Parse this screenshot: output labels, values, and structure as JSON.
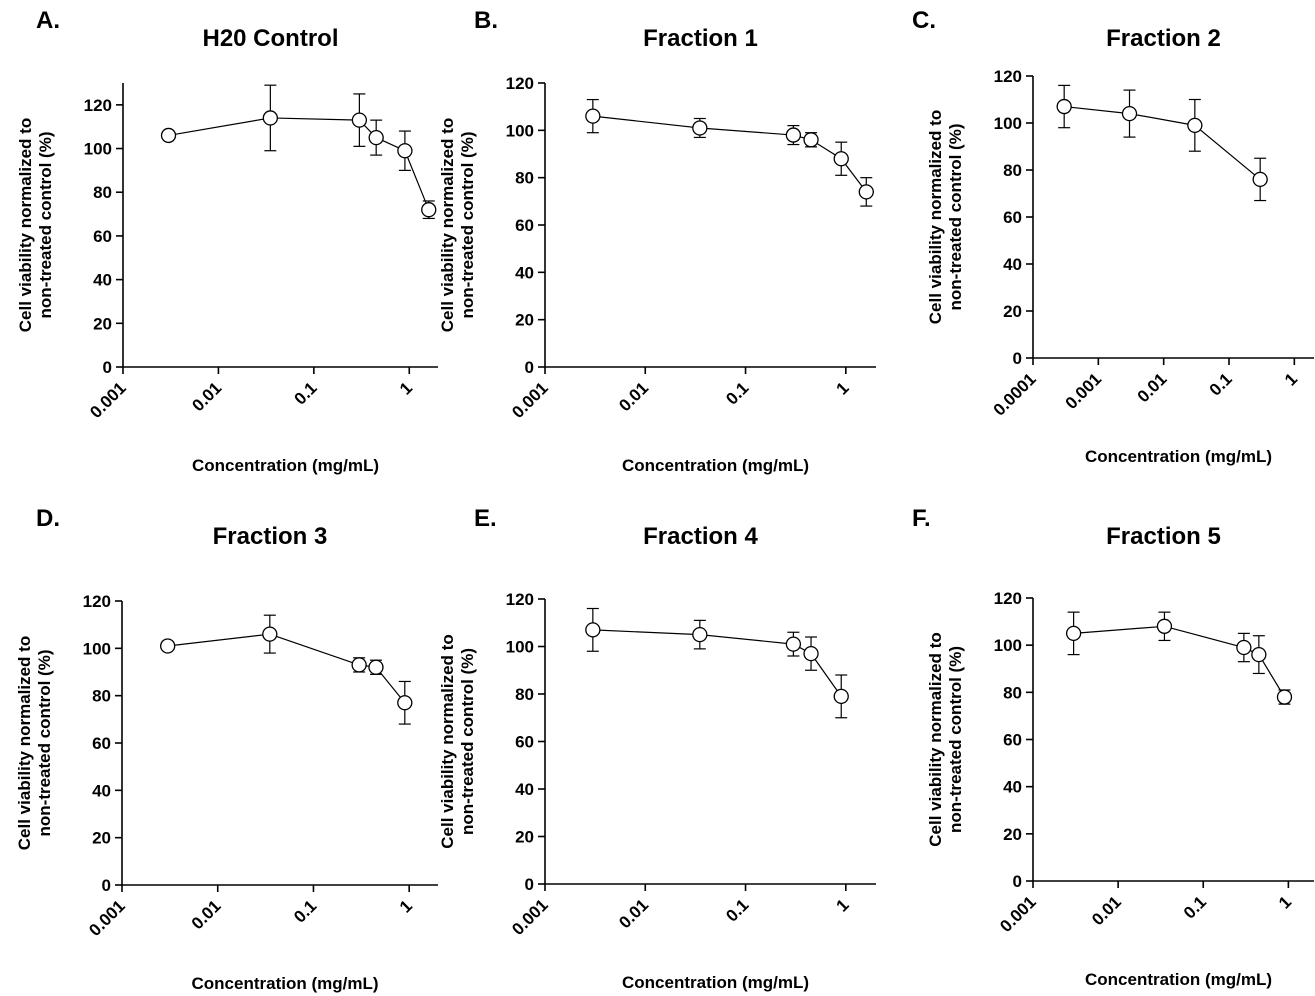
{
  "chart_data": [
    {
      "panel": "A.",
      "type": "scatter",
      "title": "H20 Control",
      "xlabel": "Concentration (mg/mL)",
      "ylabel": [
        "Cell viability normalized to",
        "non-treated control (%)"
      ],
      "x_scale": "log",
      "xlim": [
        0.001,
        2
      ],
      "ylim": [
        0,
        130
      ],
      "xticks": [
        0.001,
        0.01,
        0.1,
        1
      ],
      "xtick_labels": [
        "0.001",
        "0.01",
        "0.1",
        "1"
      ],
      "yticks": [
        0,
        20,
        40,
        60,
        80,
        100,
        120
      ],
      "ytick_labels": [
        "0",
        "20",
        "40",
        "60",
        "80",
        "100",
        "120"
      ],
      "series": [
        {
          "x": [
            0.003,
            0.035,
            0.3,
            0.45,
            0.9,
            1.6
          ],
          "y": [
            106,
            114,
            113,
            105,
            99,
            72
          ],
          "err": [
            0,
            15,
            12,
            8,
            9,
            4
          ]
        }
      ]
    },
    {
      "panel": "B.",
      "type": "scatter",
      "title": "Fraction 1",
      "xlabel": "Concentration (mg/mL)",
      "ylabel": [
        "Cell viability normalized to",
        "non-treated control (%)"
      ],
      "x_scale": "log",
      "xlim": [
        0.001,
        2
      ],
      "ylim": [
        0,
        120
      ],
      "xticks": [
        0.001,
        0.01,
        0.1,
        1
      ],
      "xtick_labels": [
        "0.001",
        "0.01",
        "0.1",
        "1"
      ],
      "yticks": [
        0,
        20,
        40,
        60,
        80,
        100,
        120
      ],
      "ytick_labels": [
        "0",
        "20",
        "40",
        "60",
        "80",
        "100",
        "120"
      ],
      "series": [
        {
          "x": [
            0.003,
            0.035,
            0.3,
            0.45,
            0.9,
            1.6
          ],
          "y": [
            106,
            101,
            98,
            96,
            88,
            74
          ],
          "err": [
            7,
            4,
            4,
            3,
            7,
            6
          ]
        }
      ]
    },
    {
      "panel": "C.",
      "type": "scatter",
      "title": "Fraction 2",
      "xlabel": "Concentration (mg/mL)",
      "ylabel": [
        "Cell viability normalized to",
        "non-treated control (%)"
      ],
      "x_scale": "log",
      "xlim": [
        0.0001,
        2
      ],
      "ylim": [
        0,
        120
      ],
      "xticks": [
        0.0001,
        0.001,
        0.01,
        0.1,
        1
      ],
      "xtick_labels": [
        "0.0001",
        "0.001",
        "0.01",
        "0.1",
        "1"
      ],
      "yticks": [
        0,
        20,
        40,
        60,
        80,
        100,
        120
      ],
      "ytick_labels": [
        "0",
        "20",
        "40",
        "60",
        "80",
        "100",
        "120"
      ],
      "series": [
        {
          "x": [
            0.0003,
            0.003,
            0.03,
            0.3
          ],
          "y": [
            107,
            104,
            99,
            76
          ],
          "err": [
            9,
            10,
            11,
            9
          ]
        }
      ]
    },
    {
      "panel": "D.",
      "type": "scatter",
      "title": "Fraction 3",
      "xlabel": "Concentration (mg/mL)",
      "ylabel": [
        "Cell viability normalized to",
        "non-treated control (%)"
      ],
      "x_scale": "log",
      "xlim": [
        0.001,
        2
      ],
      "ylim": [
        0,
        120
      ],
      "xticks": [
        0.001,
        0.01,
        0.1,
        1
      ],
      "xtick_labels": [
        "0.001",
        "0.01",
        "0.1",
        "1"
      ],
      "yticks": [
        0,
        20,
        40,
        60,
        80,
        100,
        120
      ],
      "ytick_labels": [
        "0",
        "20",
        "40",
        "60",
        "80",
        "100",
        "120"
      ],
      "series": [
        {
          "x": [
            0.003,
            0.035,
            0.3,
            0.45,
            0.9
          ],
          "y": [
            101,
            106,
            93,
            92,
            77
          ],
          "err": [
            0,
            8,
            3,
            3,
            9
          ]
        }
      ]
    },
    {
      "panel": "E.",
      "type": "scatter",
      "title": "Fraction 4",
      "xlabel": "Concentration (mg/mL)",
      "ylabel": [
        "Cell viability normalized to",
        "non-treated control (%)"
      ],
      "x_scale": "log",
      "xlim": [
        0.001,
        2
      ],
      "ylim": [
        0,
        120
      ],
      "xticks": [
        0.001,
        0.01,
        0.1,
        1
      ],
      "xtick_labels": [
        "0.001",
        "0.01",
        "0.1",
        "1"
      ],
      "yticks": [
        0,
        20,
        40,
        60,
        80,
        100,
        120
      ],
      "ytick_labels": [
        "0",
        "20",
        "40",
        "60",
        "80",
        "100",
        "120"
      ],
      "series": [
        {
          "x": [
            0.003,
            0.035,
            0.3,
            0.45,
            0.9
          ],
          "y": [
            107,
            105,
            101,
            97,
            79
          ],
          "err": [
            9,
            6,
            5,
            7,
            9
          ]
        }
      ]
    },
    {
      "panel": "F.",
      "type": "scatter",
      "title": "Fraction 5",
      "xlabel": "Concentration (mg/mL)",
      "ylabel": [
        "Cell viability normalized to",
        "non-treated control (%)"
      ],
      "x_scale": "log",
      "xlim": [
        0.001,
        2
      ],
      "ylim": [
        0,
        120
      ],
      "xticks": [
        0.001,
        0.01,
        0.1,
        1
      ],
      "xtick_labels": [
        "0.001",
        "0.01",
        "0.1",
        "1"
      ],
      "yticks": [
        0,
        20,
        40,
        60,
        80,
        100,
        120
      ],
      "ytick_labels": [
        "0",
        "20",
        "40",
        "60",
        "80",
        "100",
        "120"
      ],
      "series": [
        {
          "x": [
            0.003,
            0.035,
            0.3,
            0.45,
            0.9
          ],
          "y": [
            105,
            108,
            99,
            96,
            78
          ],
          "err": [
            9,
            6,
            6,
            8,
            3
          ]
        }
      ]
    }
  ]
}
